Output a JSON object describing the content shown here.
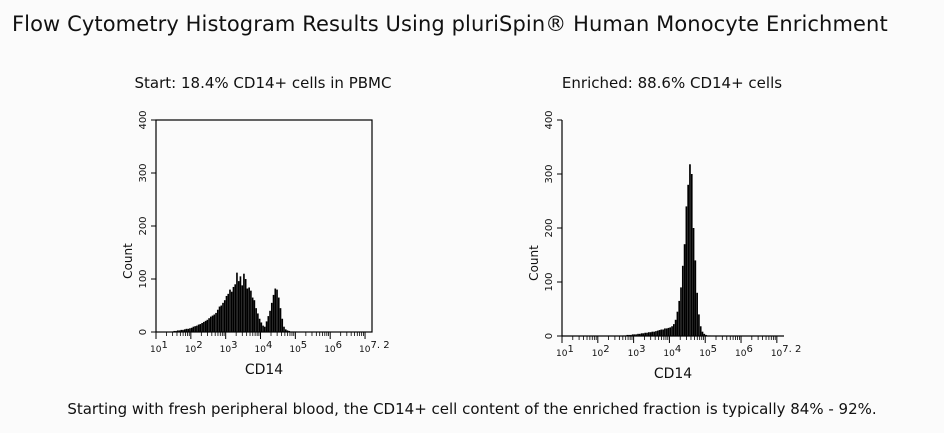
{
  "page": {
    "title": "Flow Cytometry Histogram Results Using pluriSpin® Human Monocyte Enrichment",
    "caption": "Starting with fresh peripheral blood, the CD14+ cell content of the enriched fraction is typically 84% - 92%."
  },
  "chart_data": [
    {
      "type": "bar",
      "title": "Start: 18.4% CD14+ cells in PBMC",
      "xlabel": "CD14",
      "ylabel": "Count",
      "xscale": "log",
      "xlim": [
        1,
        7.2
      ],
      "ylim": [
        0,
        400
      ],
      "xticks": [
        {
          "pos": 1,
          "base": "10",
          "exp": "1"
        },
        {
          "pos": 2,
          "base": "10",
          "exp": "2"
        },
        {
          "pos": 3,
          "base": "10",
          "exp": "3"
        },
        {
          "pos": 4,
          "base": "10",
          "exp": "4"
        },
        {
          "pos": 5,
          "base": "10",
          "exp": "5"
        },
        {
          "pos": 6,
          "base": "10",
          "exp": "6"
        },
        {
          "pos": 7,
          "base": "10",
          "exp": "7. 2"
        }
      ],
      "yticks": [
        "0",
        "100",
        "200",
        "300",
        "400"
      ],
      "ytick_values": [
        0,
        100,
        200,
        300,
        400
      ],
      "color": "#000000",
      "series": [
        {
          "x": [
            1.45,
            1.5,
            1.55,
            1.6,
            1.65,
            1.7,
            1.75,
            1.8,
            1.85,
            1.9,
            1.95,
            2.0,
            2.05,
            2.1,
            2.15,
            2.2,
            2.25,
            2.3,
            2.35,
            2.4,
            2.45,
            2.5,
            2.55,
            2.6,
            2.65,
            2.7,
            2.75,
            2.8,
            2.85,
            2.9,
            2.95,
            3.0,
            3.05,
            3.1,
            3.15,
            3.2,
            3.25,
            3.3,
            3.35,
            3.4,
            3.45,
            3.5,
            3.55,
            3.6,
            3.65,
            3.7,
            3.75,
            3.8,
            3.85,
            3.9,
            3.95,
            4.0,
            4.05,
            4.1,
            4.15,
            4.2,
            4.25,
            4.3,
            4.35,
            4.4,
            4.45,
            4.5,
            4.55,
            4.6,
            4.65,
            4.7,
            4.75,
            4.8,
            4.85,
            4.9,
            4.95,
            5.0,
            5.05,
            5.1
          ],
          "values": [
            1,
            2,
            2,
            3,
            3,
            4,
            4,
            5,
            6,
            6,
            7,
            8,
            10,
            11,
            12,
            14,
            15,
            17,
            19,
            21,
            23,
            26,
            29,
            31,
            33,
            36,
            42,
            48,
            50,
            55,
            60,
            68,
            72,
            80,
            76,
            85,
            90,
            112,
            96,
            105,
            88,
            110,
            100,
            82,
            84,
            78,
            65,
            60,
            45,
            35,
            25,
            18,
            12,
            10,
            20,
            30,
            40,
            55,
            70,
            82,
            80,
            65,
            45,
            25,
            10,
            5,
            3,
            2,
            1,
            1,
            1,
            1,
            0,
            0
          ]
        }
      ]
    },
    {
      "type": "bar",
      "title": "Enriched: 88.6% CD14+ cells",
      "xlabel": "CD14",
      "ylabel": "Count",
      "xscale": "log",
      "xlim": [
        1,
        7.2
      ],
      "ylim": [
        0,
        400
      ],
      "xticks": [
        {
          "pos": 1,
          "base": "10",
          "exp": "1"
        },
        {
          "pos": 2,
          "base": "10",
          "exp": "2"
        },
        {
          "pos": 3,
          "base": "10",
          "exp": "3"
        },
        {
          "pos": 4,
          "base": "10",
          "exp": "4"
        },
        {
          "pos": 5,
          "base": "10",
          "exp": "5"
        },
        {
          "pos": 6,
          "base": "10",
          "exp": "6"
        },
        {
          "pos": 7,
          "base": "10",
          "exp": "7. 2"
        }
      ],
      "yticks": [
        "0",
        "100",
        "200",
        "300",
        "400"
      ],
      "ytick_values": [
        0,
        100,
        200,
        300,
        400
      ],
      "color": "#000000",
      "series": [
        {
          "x": [
            2.7,
            2.75,
            2.8,
            2.85,
            2.9,
            2.95,
            3.0,
            3.05,
            3.1,
            3.15,
            3.2,
            3.25,
            3.3,
            3.35,
            3.4,
            3.45,
            3.5,
            3.55,
            3.6,
            3.65,
            3.7,
            3.75,
            3.8,
            3.85,
            3.9,
            3.95,
            4.0,
            4.05,
            4.1,
            4.15,
            4.2,
            4.25,
            4.3,
            4.35,
            4.4,
            4.45,
            4.5,
            4.55,
            4.6,
            4.65,
            4.7,
            4.75,
            4.8,
            4.85,
            4.9,
            4.95,
            5.0,
            5.05,
            5.1
          ],
          "values": [
            1,
            1,
            2,
            2,
            2,
            3,
            3,
            3,
            4,
            4,
            5,
            5,
            6,
            6,
            7,
            7,
            8,
            8,
            9,
            10,
            11,
            12,
            12,
            14,
            14,
            15,
            16,
            18,
            22,
            30,
            45,
            65,
            90,
            130,
            170,
            240,
            280,
            318,
            300,
            200,
            140,
            80,
            40,
            18,
            8,
            4,
            2,
            1,
            1
          ]
        }
      ]
    }
  ]
}
